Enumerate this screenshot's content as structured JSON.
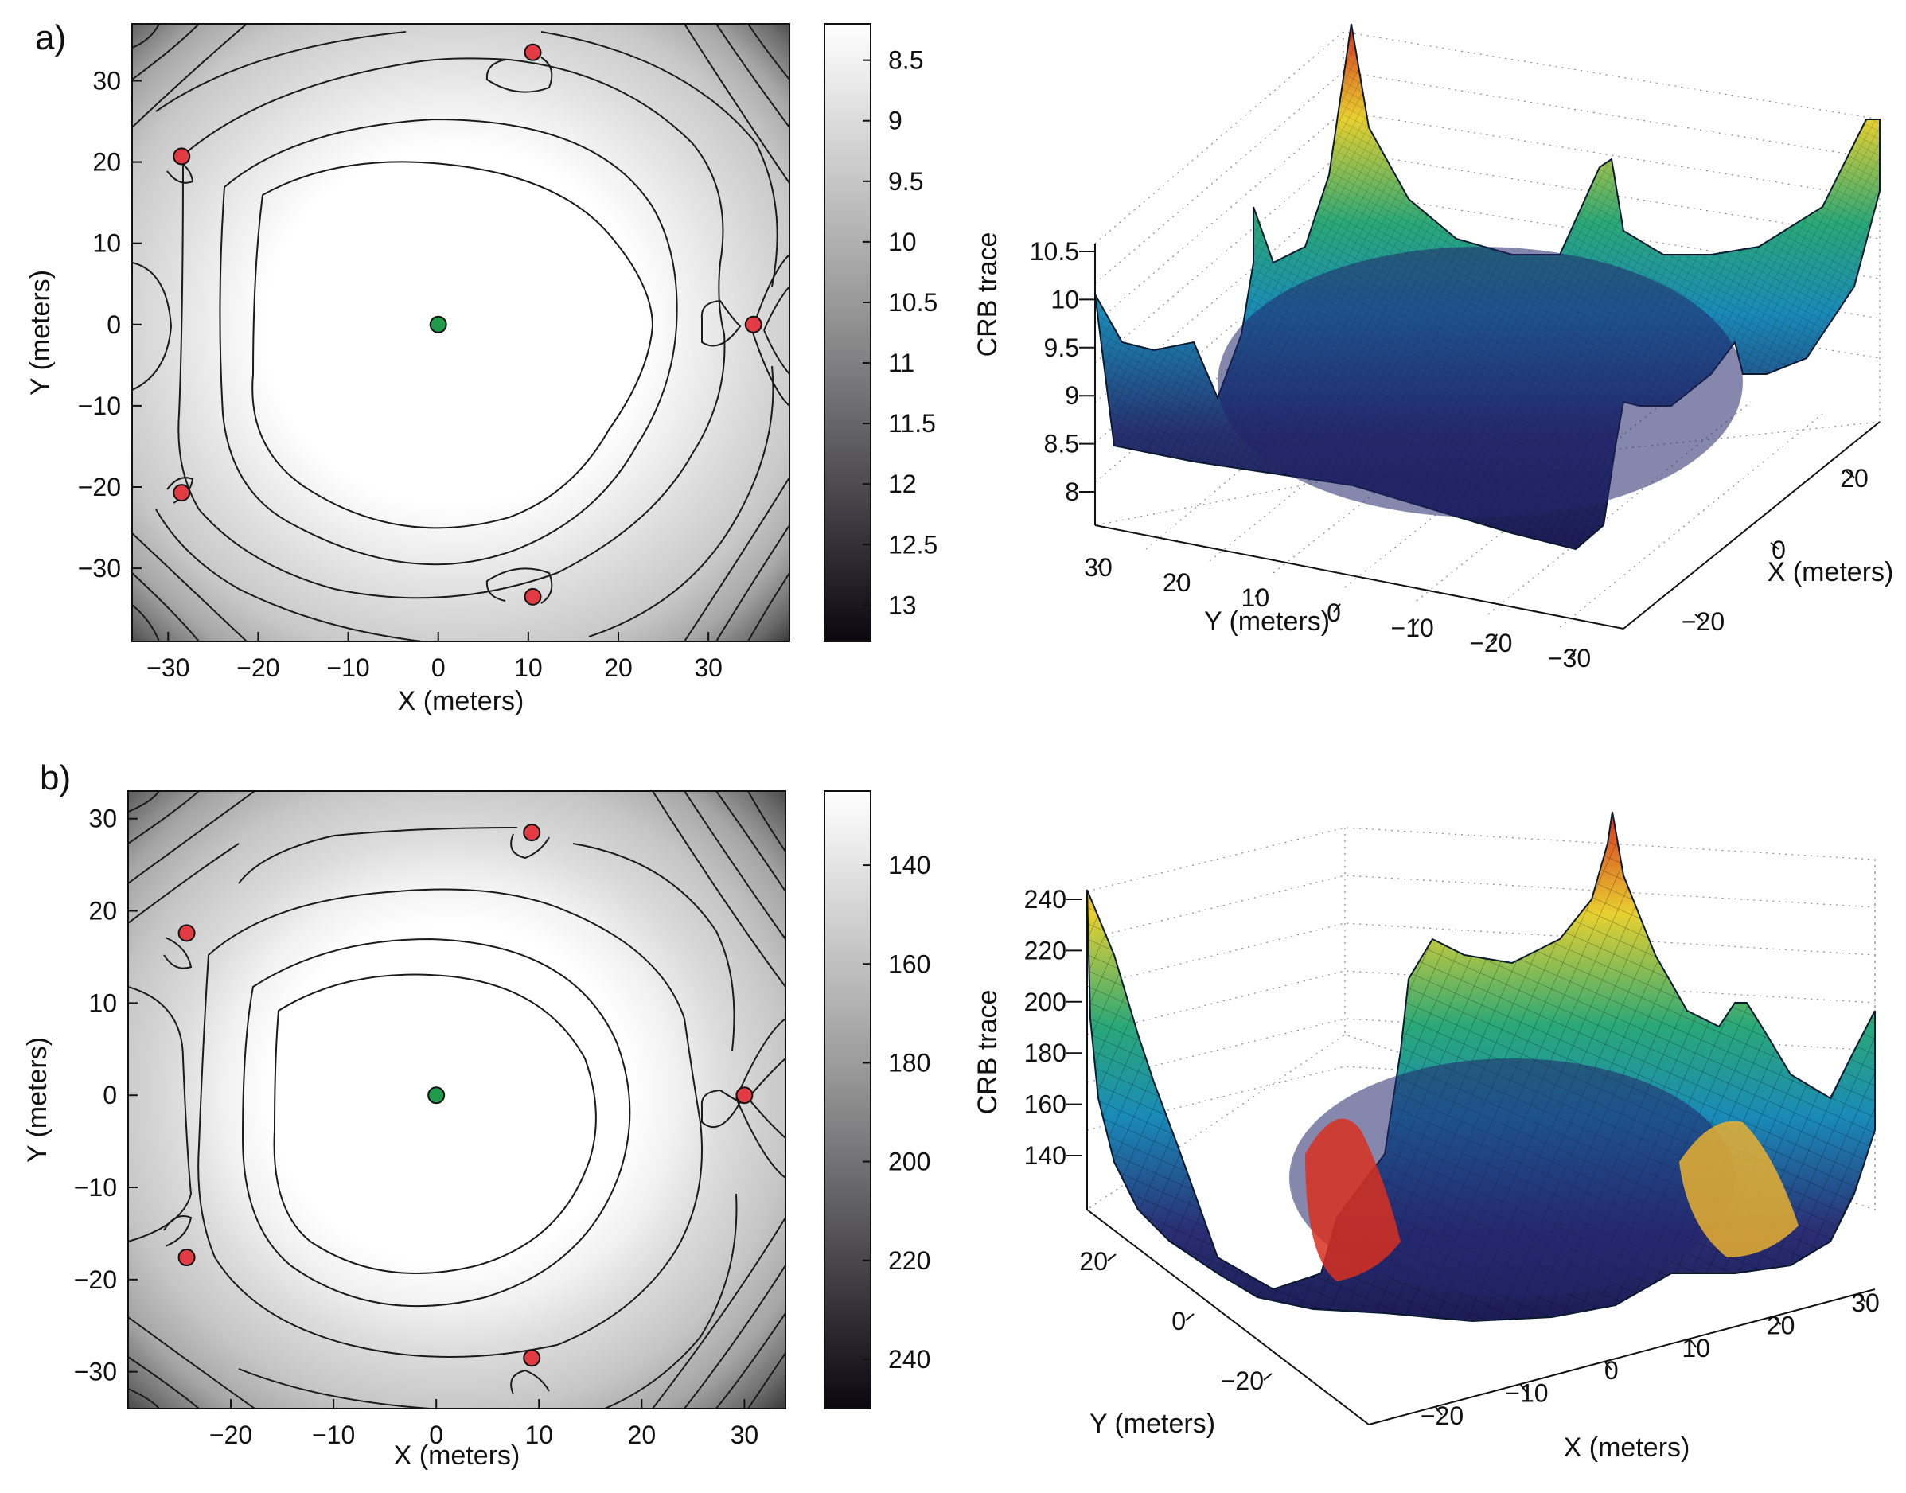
{
  "figure": {
    "panels": [
      "a)",
      "b)"
    ]
  },
  "colors": {
    "sensor": "#e23b43",
    "center": "#1e9a4a",
    "contour_line": "#1a1a1a",
    "surface_low": "#2a2a7a",
    "surface_mid": "#1aa0c0",
    "surface_high": "#e8d030",
    "surface_peak": "#d83020"
  },
  "chart_data": [
    {
      "id": "a-contour",
      "type": "heatmap",
      "panel_label": "a)",
      "title": "",
      "xlabel": "X (meters)",
      "ylabel": "Y (meters)",
      "xlim": [
        -34,
        39
      ],
      "ylim": [
        -39,
        37
      ],
      "xticks": [
        "-30",
        "-20",
        "-10",
        "0",
        "10",
        "20",
        "30"
      ],
      "yticks": [
        "30",
        "20",
        "10",
        "0",
        "-10",
        "-20",
        "-30"
      ],
      "xtick_values": [
        -30,
        -20,
        -10,
        0,
        10,
        20,
        30
      ],
      "ytick_values": [
        30,
        20,
        10,
        0,
        -10,
        -20,
        -30
      ],
      "sensors": [
        {
          "x": 10.5,
          "y": 33.5
        },
        {
          "x": -28.5,
          "y": 20.7
        },
        {
          "x": 35.0,
          "y": 0.0
        },
        {
          "x": -28.5,
          "y": -20.7
        },
        {
          "x": 10.5,
          "y": -33.5
        }
      ],
      "center": {
        "x": 0,
        "y": 0
      },
      "colorbar": {
        "min": 8.2,
        "max": 13.3,
        "ticks": [
          "8.5",
          "9",
          "9.5",
          "10",
          "10.5",
          "11",
          "11.5",
          "12",
          "12.5",
          "13"
        ],
        "tick_values": [
          8.5,
          9,
          9.5,
          10,
          10.5,
          11,
          11.5,
          12,
          12.5,
          13
        ]
      }
    },
    {
      "id": "a-surface",
      "type": "area",
      "title": "",
      "xlabel": "X (meters)",
      "ylabel": "Y (meters)",
      "zlabel": "CRB trace",
      "zticks": [
        "10.5",
        "10",
        "9.5",
        "9",
        "8.5",
        "8"
      ],
      "xticks": [
        "20",
        "0",
        "-20"
      ],
      "yticks": [
        "30",
        "20",
        "10",
        "0",
        "-10",
        "-20",
        "-30"
      ],
      "zlim": [
        8,
        10.5
      ]
    },
    {
      "id": "b-contour",
      "type": "heatmap",
      "panel_label": "b)",
      "title": "",
      "xlabel": "X (meters)",
      "ylabel": "Y (meters)",
      "xlim": [
        -30,
        34
      ],
      "ylim": [
        -34,
        33
      ],
      "xticks": [
        "-20",
        "-10",
        "0",
        "10",
        "20",
        "30"
      ],
      "yticks": [
        "30",
        "20",
        "10",
        "0",
        "-10",
        "-20",
        "-30"
      ],
      "xtick_values": [
        -20,
        -10,
        0,
        10,
        20,
        30
      ],
      "ytick_values": [
        30,
        20,
        10,
        0,
        -10,
        -20,
        -30
      ],
      "sensors": [
        {
          "x": 9.3,
          "y": 28.5
        },
        {
          "x": -24.3,
          "y": 17.6
        },
        {
          "x": 30.0,
          "y": 0.0
        },
        {
          "x": -24.3,
          "y": -17.6
        },
        {
          "x": 9.3,
          "y": -28.5
        }
      ],
      "center": {
        "x": 0,
        "y": 0
      },
      "colorbar": {
        "min": 125,
        "max": 250,
        "ticks": [
          "140",
          "160",
          "180",
          "200",
          "220",
          "240"
        ],
        "tick_values": [
          140,
          160,
          180,
          200,
          220,
          240
        ]
      }
    },
    {
      "id": "b-surface",
      "type": "area",
      "title": "",
      "xlabel": "X (meters)",
      "ylabel": "Y (meters)",
      "zlabel": "CRB trace",
      "zticks": [
        "240",
        "220",
        "200",
        "180",
        "160",
        "140"
      ],
      "xticks": [
        "-20",
        "-10",
        "0",
        "10",
        "20",
        "30"
      ],
      "yticks": [
        "20",
        "0",
        "-20"
      ],
      "zlim": [
        130,
        240
      ]
    }
  ]
}
